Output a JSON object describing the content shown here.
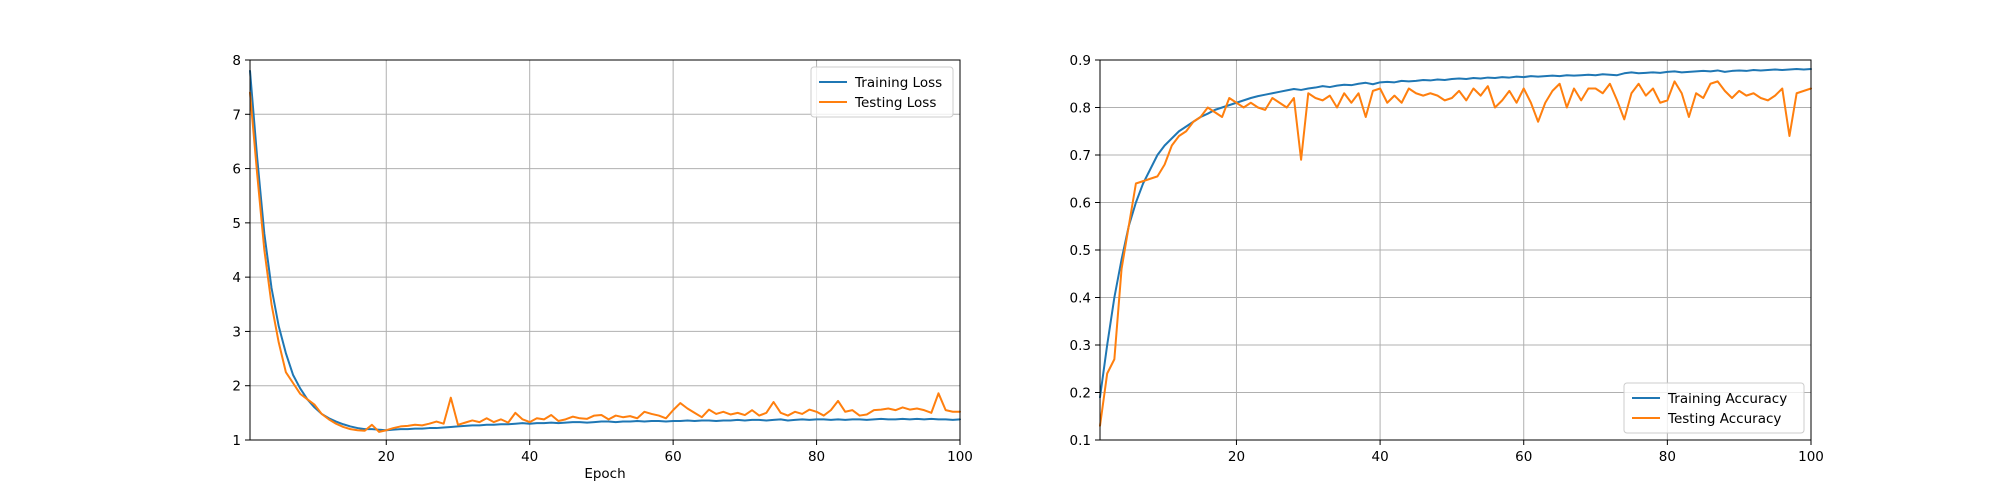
{
  "chart_data": [
    {
      "type": "line",
      "title": "",
      "xlabel": "Epoch",
      "ylabel": "",
      "xlim": [
        1,
        100
      ],
      "ylim": [
        1,
        8
      ],
      "xticks": [
        20,
        40,
        60,
        80,
        100
      ],
      "yticks": [
        1,
        2,
        3,
        4,
        5,
        6,
        7,
        8
      ],
      "grid": true,
      "legend_position": "upper right",
      "series": [
        {
          "name": "Training Loss",
          "color": "#1f77b4",
          "x": [
            1,
            2,
            3,
            4,
            5,
            6,
            7,
            8,
            9,
            10,
            11,
            12,
            13,
            14,
            15,
            16,
            17,
            18,
            19,
            20,
            21,
            22,
            23,
            24,
            25,
            26,
            27,
            28,
            29,
            30,
            31,
            32,
            33,
            34,
            35,
            36,
            37,
            38,
            39,
            40,
            41,
            42,
            43,
            44,
            45,
            46,
            47,
            48,
            49,
            50,
            51,
            52,
            53,
            54,
            55,
            56,
            57,
            58,
            59,
            60,
            61,
            62,
            63,
            64,
            65,
            66,
            67,
            68,
            69,
            70,
            71,
            72,
            73,
            74,
            75,
            76,
            77,
            78,
            79,
            80,
            81,
            82,
            83,
            84,
            85,
            86,
            87,
            88,
            89,
            90,
            91,
            92,
            93,
            94,
            95,
            96,
            97,
            98,
            99,
            100
          ],
          "values": [
            7.8,
            6.2,
            4.8,
            3.8,
            3.1,
            2.6,
            2.2,
            1.95,
            1.75,
            1.6,
            1.48,
            1.4,
            1.34,
            1.29,
            1.25,
            1.22,
            1.2,
            1.2,
            1.19,
            1.18,
            1.19,
            1.2,
            1.2,
            1.21,
            1.21,
            1.22,
            1.22,
            1.23,
            1.24,
            1.25,
            1.26,
            1.27,
            1.27,
            1.28,
            1.28,
            1.29,
            1.29,
            1.3,
            1.31,
            1.3,
            1.31,
            1.31,
            1.32,
            1.31,
            1.32,
            1.33,
            1.33,
            1.32,
            1.33,
            1.34,
            1.34,
            1.33,
            1.34,
            1.34,
            1.35,
            1.34,
            1.35,
            1.35,
            1.34,
            1.35,
            1.35,
            1.36,
            1.35,
            1.36,
            1.36,
            1.35,
            1.36,
            1.36,
            1.37,
            1.36,
            1.37,
            1.37,
            1.36,
            1.37,
            1.38,
            1.36,
            1.37,
            1.38,
            1.37,
            1.38,
            1.38,
            1.37,
            1.38,
            1.37,
            1.38,
            1.38,
            1.37,
            1.38,
            1.39,
            1.38,
            1.38,
            1.39,
            1.38,
            1.39,
            1.38,
            1.39,
            1.38,
            1.38,
            1.37,
            1.38
          ]
        },
        {
          "name": "Testing Loss",
          "color": "#ff7f0e",
          "x": [
            1,
            2,
            3,
            4,
            5,
            6,
            7,
            8,
            9,
            10,
            11,
            12,
            13,
            14,
            15,
            16,
            17,
            18,
            19,
            20,
            21,
            22,
            23,
            24,
            25,
            26,
            27,
            28,
            29,
            30,
            31,
            32,
            33,
            34,
            35,
            36,
            37,
            38,
            39,
            40,
            41,
            42,
            43,
            44,
            45,
            46,
            47,
            48,
            49,
            50,
            51,
            52,
            53,
            54,
            55,
            56,
            57,
            58,
            59,
            60,
            61,
            62,
            63,
            64,
            65,
            66,
            67,
            68,
            69,
            70,
            71,
            72,
            73,
            74,
            75,
            76,
            77,
            78,
            79,
            80,
            81,
            82,
            83,
            84,
            85,
            86,
            87,
            88,
            89,
            90,
            91,
            92,
            93,
            94,
            95,
            96,
            97,
            98,
            99,
            100
          ],
          "values": [
            7.4,
            5.9,
            4.5,
            3.5,
            2.8,
            2.25,
            2.05,
            1.85,
            1.75,
            1.65,
            1.48,
            1.38,
            1.3,
            1.24,
            1.2,
            1.18,
            1.17,
            1.28,
            1.15,
            1.18,
            1.22,
            1.25,
            1.26,
            1.28,
            1.27,
            1.3,
            1.34,
            1.3,
            1.78,
            1.28,
            1.32,
            1.36,
            1.33,
            1.4,
            1.33,
            1.38,
            1.32,
            1.5,
            1.38,
            1.33,
            1.4,
            1.38,
            1.46,
            1.35,
            1.38,
            1.43,
            1.4,
            1.39,
            1.45,
            1.46,
            1.38,
            1.45,
            1.42,
            1.44,
            1.4,
            1.52,
            1.48,
            1.45,
            1.4,
            1.55,
            1.68,
            1.58,
            1.5,
            1.42,
            1.56,
            1.48,
            1.52,
            1.47,
            1.5,
            1.46,
            1.55,
            1.45,
            1.5,
            1.7,
            1.5,
            1.45,
            1.52,
            1.48,
            1.56,
            1.52,
            1.45,
            1.55,
            1.72,
            1.52,
            1.55,
            1.45,
            1.47,
            1.55,
            1.56,
            1.58,
            1.55,
            1.6,
            1.56,
            1.58,
            1.55,
            1.5,
            1.86,
            1.55,
            1.52,
            1.52
          ]
        }
      ]
    },
    {
      "type": "line",
      "title": "",
      "xlabel": "",
      "ylabel": "",
      "xlim": [
        1,
        100
      ],
      "ylim": [
        0.1,
        0.9
      ],
      "xticks": [
        20,
        40,
        60,
        80,
        100
      ],
      "yticks": [
        0.1,
        0.2,
        0.3,
        0.4,
        0.5,
        0.6,
        0.7,
        0.8,
        0.9
      ],
      "ytick_labels": [
        "0.1",
        "0.2",
        "0.3",
        "0.4",
        "0.5",
        "0.6",
        "0.7",
        "0.8",
        "0.9"
      ],
      "grid": true,
      "legend_position": "lower right",
      "series": [
        {
          "name": "Training Accuracy",
          "color": "#1f77b4",
          "x": [
            1,
            2,
            3,
            4,
            5,
            6,
            7,
            8,
            9,
            10,
            11,
            12,
            13,
            14,
            15,
            16,
            17,
            18,
            19,
            20,
            21,
            22,
            23,
            24,
            25,
            26,
            27,
            28,
            29,
            30,
            31,
            32,
            33,
            34,
            35,
            36,
            37,
            38,
            39,
            40,
            41,
            42,
            43,
            44,
            45,
            46,
            47,
            48,
            49,
            50,
            51,
            52,
            53,
            54,
            55,
            56,
            57,
            58,
            59,
            60,
            61,
            62,
            63,
            64,
            65,
            66,
            67,
            68,
            69,
            70,
            71,
            72,
            73,
            74,
            75,
            76,
            77,
            78,
            79,
            80,
            81,
            82,
            83,
            84,
            85,
            86,
            87,
            88,
            89,
            90,
            91,
            92,
            93,
            94,
            95,
            96,
            97,
            98,
            99,
            100
          ],
          "values": [
            0.19,
            0.3,
            0.4,
            0.48,
            0.55,
            0.6,
            0.64,
            0.67,
            0.7,
            0.72,
            0.735,
            0.75,
            0.76,
            0.77,
            0.78,
            0.787,
            0.795,
            0.8,
            0.805,
            0.81,
            0.815,
            0.82,
            0.824,
            0.827,
            0.83,
            0.833,
            0.836,
            0.839,
            0.837,
            0.84,
            0.842,
            0.845,
            0.843,
            0.846,
            0.848,
            0.847,
            0.85,
            0.852,
            0.849,
            0.853,
            0.854,
            0.853,
            0.856,
            0.855,
            0.856,
            0.858,
            0.857,
            0.859,
            0.858,
            0.86,
            0.861,
            0.86,
            0.862,
            0.861,
            0.863,
            0.862,
            0.864,
            0.863,
            0.865,
            0.864,
            0.866,
            0.865,
            0.866,
            0.867,
            0.866,
            0.868,
            0.867,
            0.868,
            0.869,
            0.868,
            0.87,
            0.869,
            0.868,
            0.872,
            0.874,
            0.872,
            0.873,
            0.874,
            0.873,
            0.875,
            0.876,
            0.874,
            0.875,
            0.876,
            0.877,
            0.876,
            0.878,
            0.875,
            0.877,
            0.878,
            0.877,
            0.879,
            0.878,
            0.879,
            0.88,
            0.879,
            0.88,
            0.881,
            0.88,
            0.881
          ]
        },
        {
          "name": "Testing Accuracy",
          "color": "#ff7f0e",
          "x": [
            1,
            2,
            3,
            4,
            5,
            6,
            7,
            8,
            9,
            10,
            11,
            12,
            13,
            14,
            15,
            16,
            17,
            18,
            19,
            20,
            21,
            22,
            23,
            24,
            25,
            26,
            27,
            28,
            29,
            30,
            31,
            32,
            33,
            34,
            35,
            36,
            37,
            38,
            39,
            40,
            41,
            42,
            43,
            44,
            45,
            46,
            47,
            48,
            49,
            50,
            51,
            52,
            53,
            54,
            55,
            56,
            57,
            58,
            59,
            60,
            61,
            62,
            63,
            64,
            65,
            66,
            67,
            68,
            69,
            70,
            71,
            72,
            73,
            74,
            75,
            76,
            77,
            78,
            79,
            80,
            81,
            82,
            83,
            84,
            85,
            86,
            87,
            88,
            89,
            90,
            91,
            92,
            93,
            94,
            95,
            96,
            97,
            98,
            99,
            100
          ],
          "values": [
            0.13,
            0.24,
            0.27,
            0.46,
            0.55,
            0.64,
            0.645,
            0.65,
            0.655,
            0.68,
            0.72,
            0.74,
            0.75,
            0.77,
            0.78,
            0.8,
            0.79,
            0.78,
            0.82,
            0.81,
            0.8,
            0.81,
            0.8,
            0.795,
            0.82,
            0.81,
            0.8,
            0.82,
            0.69,
            0.83,
            0.82,
            0.815,
            0.825,
            0.8,
            0.83,
            0.81,
            0.83,
            0.78,
            0.835,
            0.84,
            0.81,
            0.825,
            0.81,
            0.84,
            0.83,
            0.825,
            0.83,
            0.825,
            0.815,
            0.82,
            0.835,
            0.815,
            0.84,
            0.825,
            0.845,
            0.8,
            0.815,
            0.835,
            0.81,
            0.84,
            0.81,
            0.77,
            0.81,
            0.835,
            0.85,
            0.8,
            0.84,
            0.815,
            0.84,
            0.84,
            0.83,
            0.85,
            0.815,
            0.775,
            0.83,
            0.85,
            0.825,
            0.84,
            0.81,
            0.815,
            0.855,
            0.83,
            0.78,
            0.83,
            0.82,
            0.85,
            0.855,
            0.835,
            0.82,
            0.835,
            0.825,
            0.83,
            0.82,
            0.815,
            0.825,
            0.84,
            0.74,
            0.83,
            0.835,
            0.84
          ]
        }
      ]
    }
  ]
}
